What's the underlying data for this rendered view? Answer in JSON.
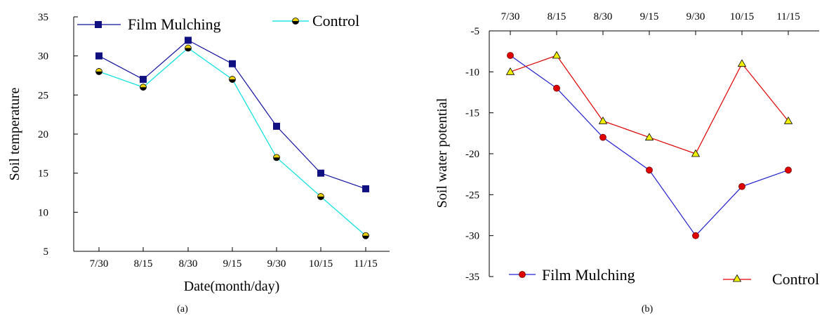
{
  "chart_data": [
    {
      "type": "line",
      "panel_label": "(a)",
      "categories": [
        "7/30",
        "8/15",
        "8/30",
        "9/15",
        "9/30",
        "10/15",
        "11/15"
      ],
      "xlabel": "Date(month/day)",
      "ylabel": "Soil temperature",
      "ylim": [
        5,
        35
      ],
      "yticks": [
        5,
        10,
        15,
        20,
        25,
        30,
        35
      ],
      "grid": false,
      "legend_position": "top",
      "series": [
        {
          "name": "Film Mulching",
          "values": [
            30,
            27,
            32,
            29,
            21,
            15,
            13
          ],
          "color": "#1010a0",
          "marker": "square",
          "marker_color": "#101080"
        },
        {
          "name": "Control",
          "values": [
            28,
            26,
            31,
            27,
            17,
            12,
            7
          ],
          "color": "#00e0e0",
          "marker": "half-circle",
          "marker_color": "#e8d000"
        }
      ]
    },
    {
      "type": "line",
      "panel_label": "(b)",
      "categories": [
        "7/30",
        "8/15",
        "8/30",
        "9/15",
        "9/30",
        "10/15",
        "11/15"
      ],
      "xaxis_position": "top",
      "xlabel": "",
      "ylabel": "Soil water potential",
      "ylim": [
        -35,
        -5
      ],
      "yticks": [
        -5,
        -10,
        -15,
        -20,
        -25,
        -30,
        -35
      ],
      "grid": false,
      "legend_position": "bottom",
      "series": [
        {
          "name": "Film Mulching",
          "values": [
            -8,
            -12,
            -18,
            -22,
            -30,
            -24,
            -22
          ],
          "color": "#2020d0",
          "marker": "circle",
          "marker_color": "#e00000"
        },
        {
          "name": "Control",
          "values": [
            -10,
            -8,
            -16,
            -18,
            -20,
            -9,
            -16
          ],
          "color": "#e00000",
          "marker": "triangle",
          "marker_color": "#f0f000"
        }
      ]
    }
  ]
}
